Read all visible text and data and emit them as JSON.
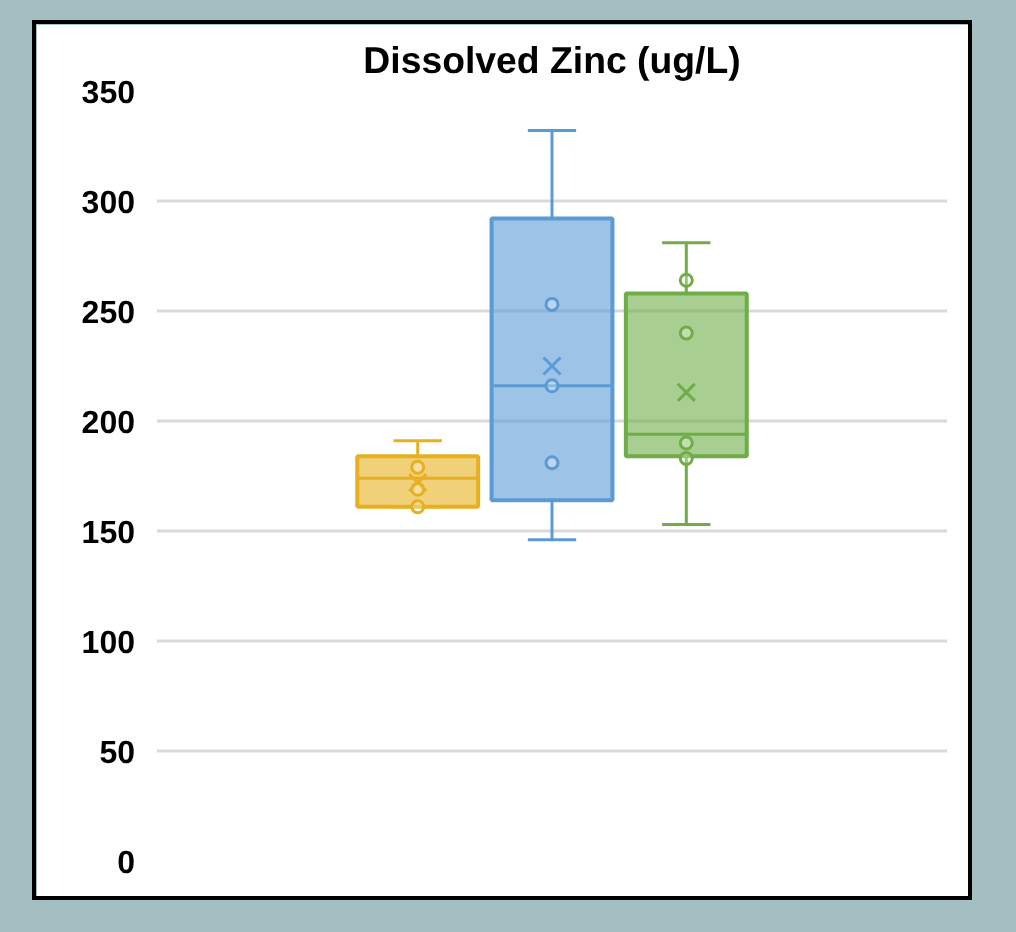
{
  "chart_data": {
    "type": "box",
    "title": "Dissolved Zinc (ug/L)",
    "categories": [
      null
    ],
    "ylim": [
      0,
      350
    ],
    "yticks": [
      0,
      50,
      100,
      150,
      200,
      250,
      300,
      350
    ],
    "grid": "y",
    "tick_labels": "y",
    "series": [
      {
        "color": "#e6b020",
        "boxes": [
          {
            "low": 161,
            "q1": 161,
            "median": 174,
            "q3": 184,
            "high": 191,
            "mean": 172,
            "outliers": [
              179,
              169,
              161
            ]
          }
        ]
      },
      {
        "color": "#5b9bd5",
        "boxes": [
          {
            "low": 146,
            "q1": 164,
            "median": 216,
            "q3": 292,
            "high": 332,
            "mean": 225,
            "outliers": [
              253,
              216,
              181
            ]
          }
        ]
      },
      {
        "color": "#70ad47",
        "boxes": [
          {
            "low": 153,
            "q1": 184,
            "median": 194,
            "q3": 258,
            "high": 281,
            "mean": 213,
            "outliers": [
              264,
              240,
              190,
              183
            ]
          }
        ]
      }
    ]
  }
}
